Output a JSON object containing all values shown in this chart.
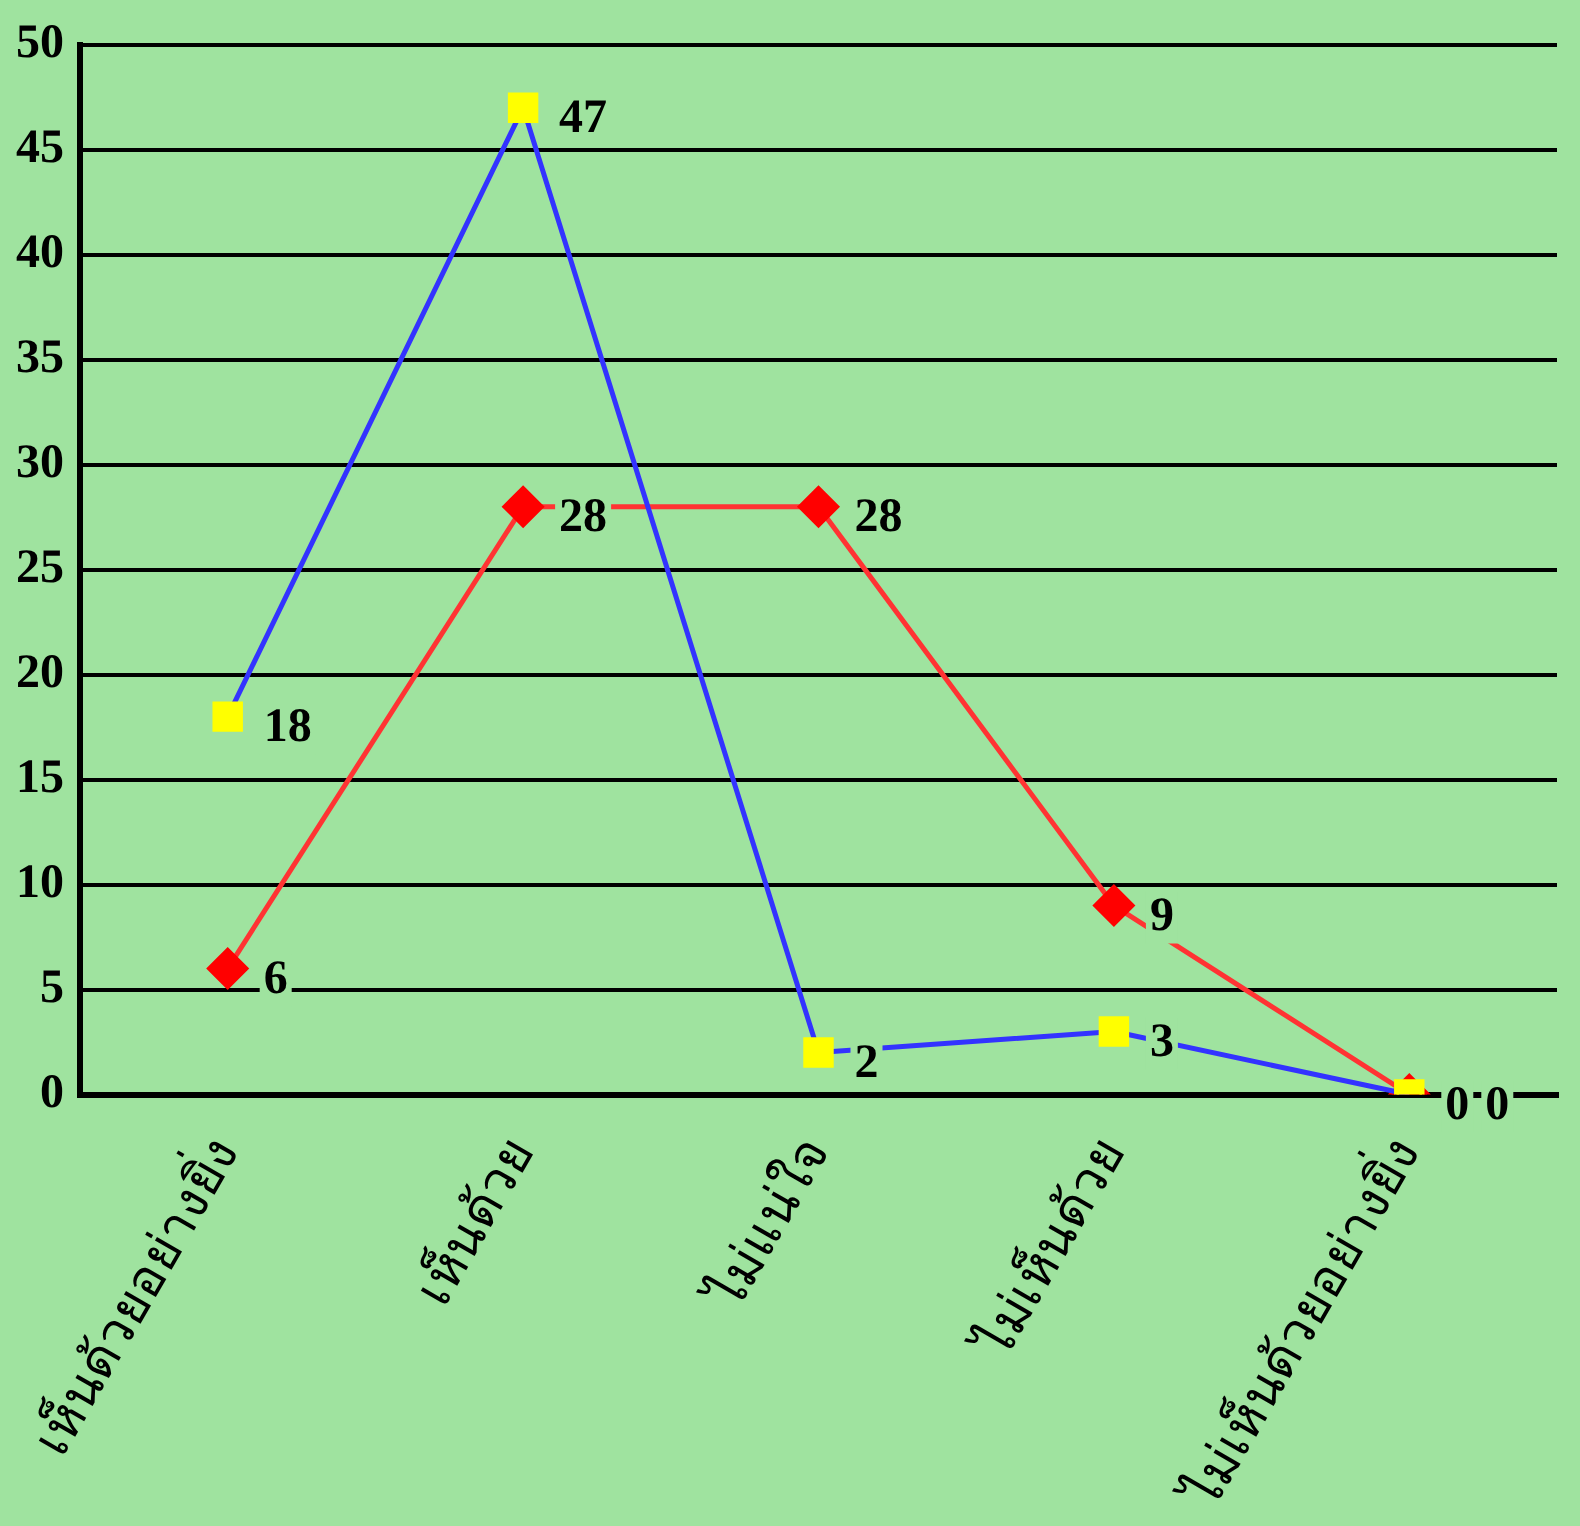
{
  "chart_data": {
    "type": "line",
    "categories": [
      "เห็นด้วยอย่างยิ่ง",
      "เห็นด้วย",
      "ไม่แน่ใจ",
      "ไม่เห็นด้วย",
      "ไม่เห็นด้วยอย่างยิ่ง"
    ],
    "series": [
      {
        "color": "#3333ff",
        "colors": [
          "#ffff00",
          "#ffff00",
          "#ffff00",
          "#ffff00",
          "#ffff00"
        ],
        "marker": "square",
        "values": [
          18,
          47,
          2,
          3,
          0
        ]
      },
      {
        "color": "#ff3333",
        "colors": [
          "#ff0000",
          "#ff0000",
          "#ff0000",
          "#ff0000",
          "#ff0000"
        ],
        "marker": "diamond",
        "values": [
          6,
          28,
          28,
          9,
          0
        ]
      }
    ],
    "ylim": [
      0,
      50
    ],
    "yticks": [
      0,
      5,
      10,
      15,
      20,
      25,
      30,
      35,
      40,
      45,
      50
    ],
    "grid": "y",
    "data_labels": true,
    "legend": false,
    "line_style": "solid"
  }
}
